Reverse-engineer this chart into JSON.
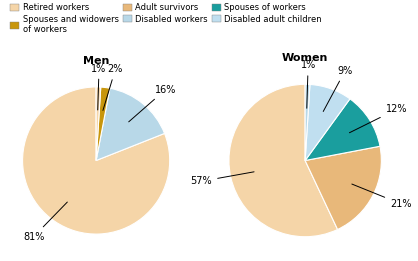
{
  "men": {
    "values": [
      81,
      16,
      2,
      1
    ],
    "colors": [
      "#F5D5A8",
      "#B8D8E8",
      "#C8960C",
      "#F5D5A8"
    ],
    "labels": [
      "81%",
      "16%",
      "2%",
      "1%"
    ],
    "startangle": 90,
    "title": "Men",
    "label_angles": [
      180,
      110,
      88,
      92
    ]
  },
  "women": {
    "values": [
      57,
      21,
      12,
      9,
      1
    ],
    "colors": [
      "#F5D5A8",
      "#E8B87A",
      "#1A9E9E",
      "#C0DFF0",
      "#B8D8E8"
    ],
    "labels": [
      "57%",
      "21%",
      "12%",
      "9%",
      "1%"
    ],
    "startangle": 90,
    "title": "Women",
    "label_angles": [
      0,
      130,
      210,
      250,
      91
    ]
  },
  "legend": [
    {
      "label": "Retired workers",
      "color": "#F5D5A8"
    },
    {
      "label": "Spouses and widowers\nof workers",
      "color": "#C8960C"
    },
    {
      "label": "Adult survivors",
      "color": "#E8B87A"
    },
    {
      "label": "Disabled workers",
      "color": "#B8D8E8"
    },
    {
      "label": "Spouses of workers",
      "color": "#1A9E9E"
    },
    {
      "label": "Disabled adult children",
      "color": "#C0DFF0"
    }
  ],
  "bg_color": "#FFFFFF",
  "title_fontsize": 8,
  "label_fontsize": 7
}
